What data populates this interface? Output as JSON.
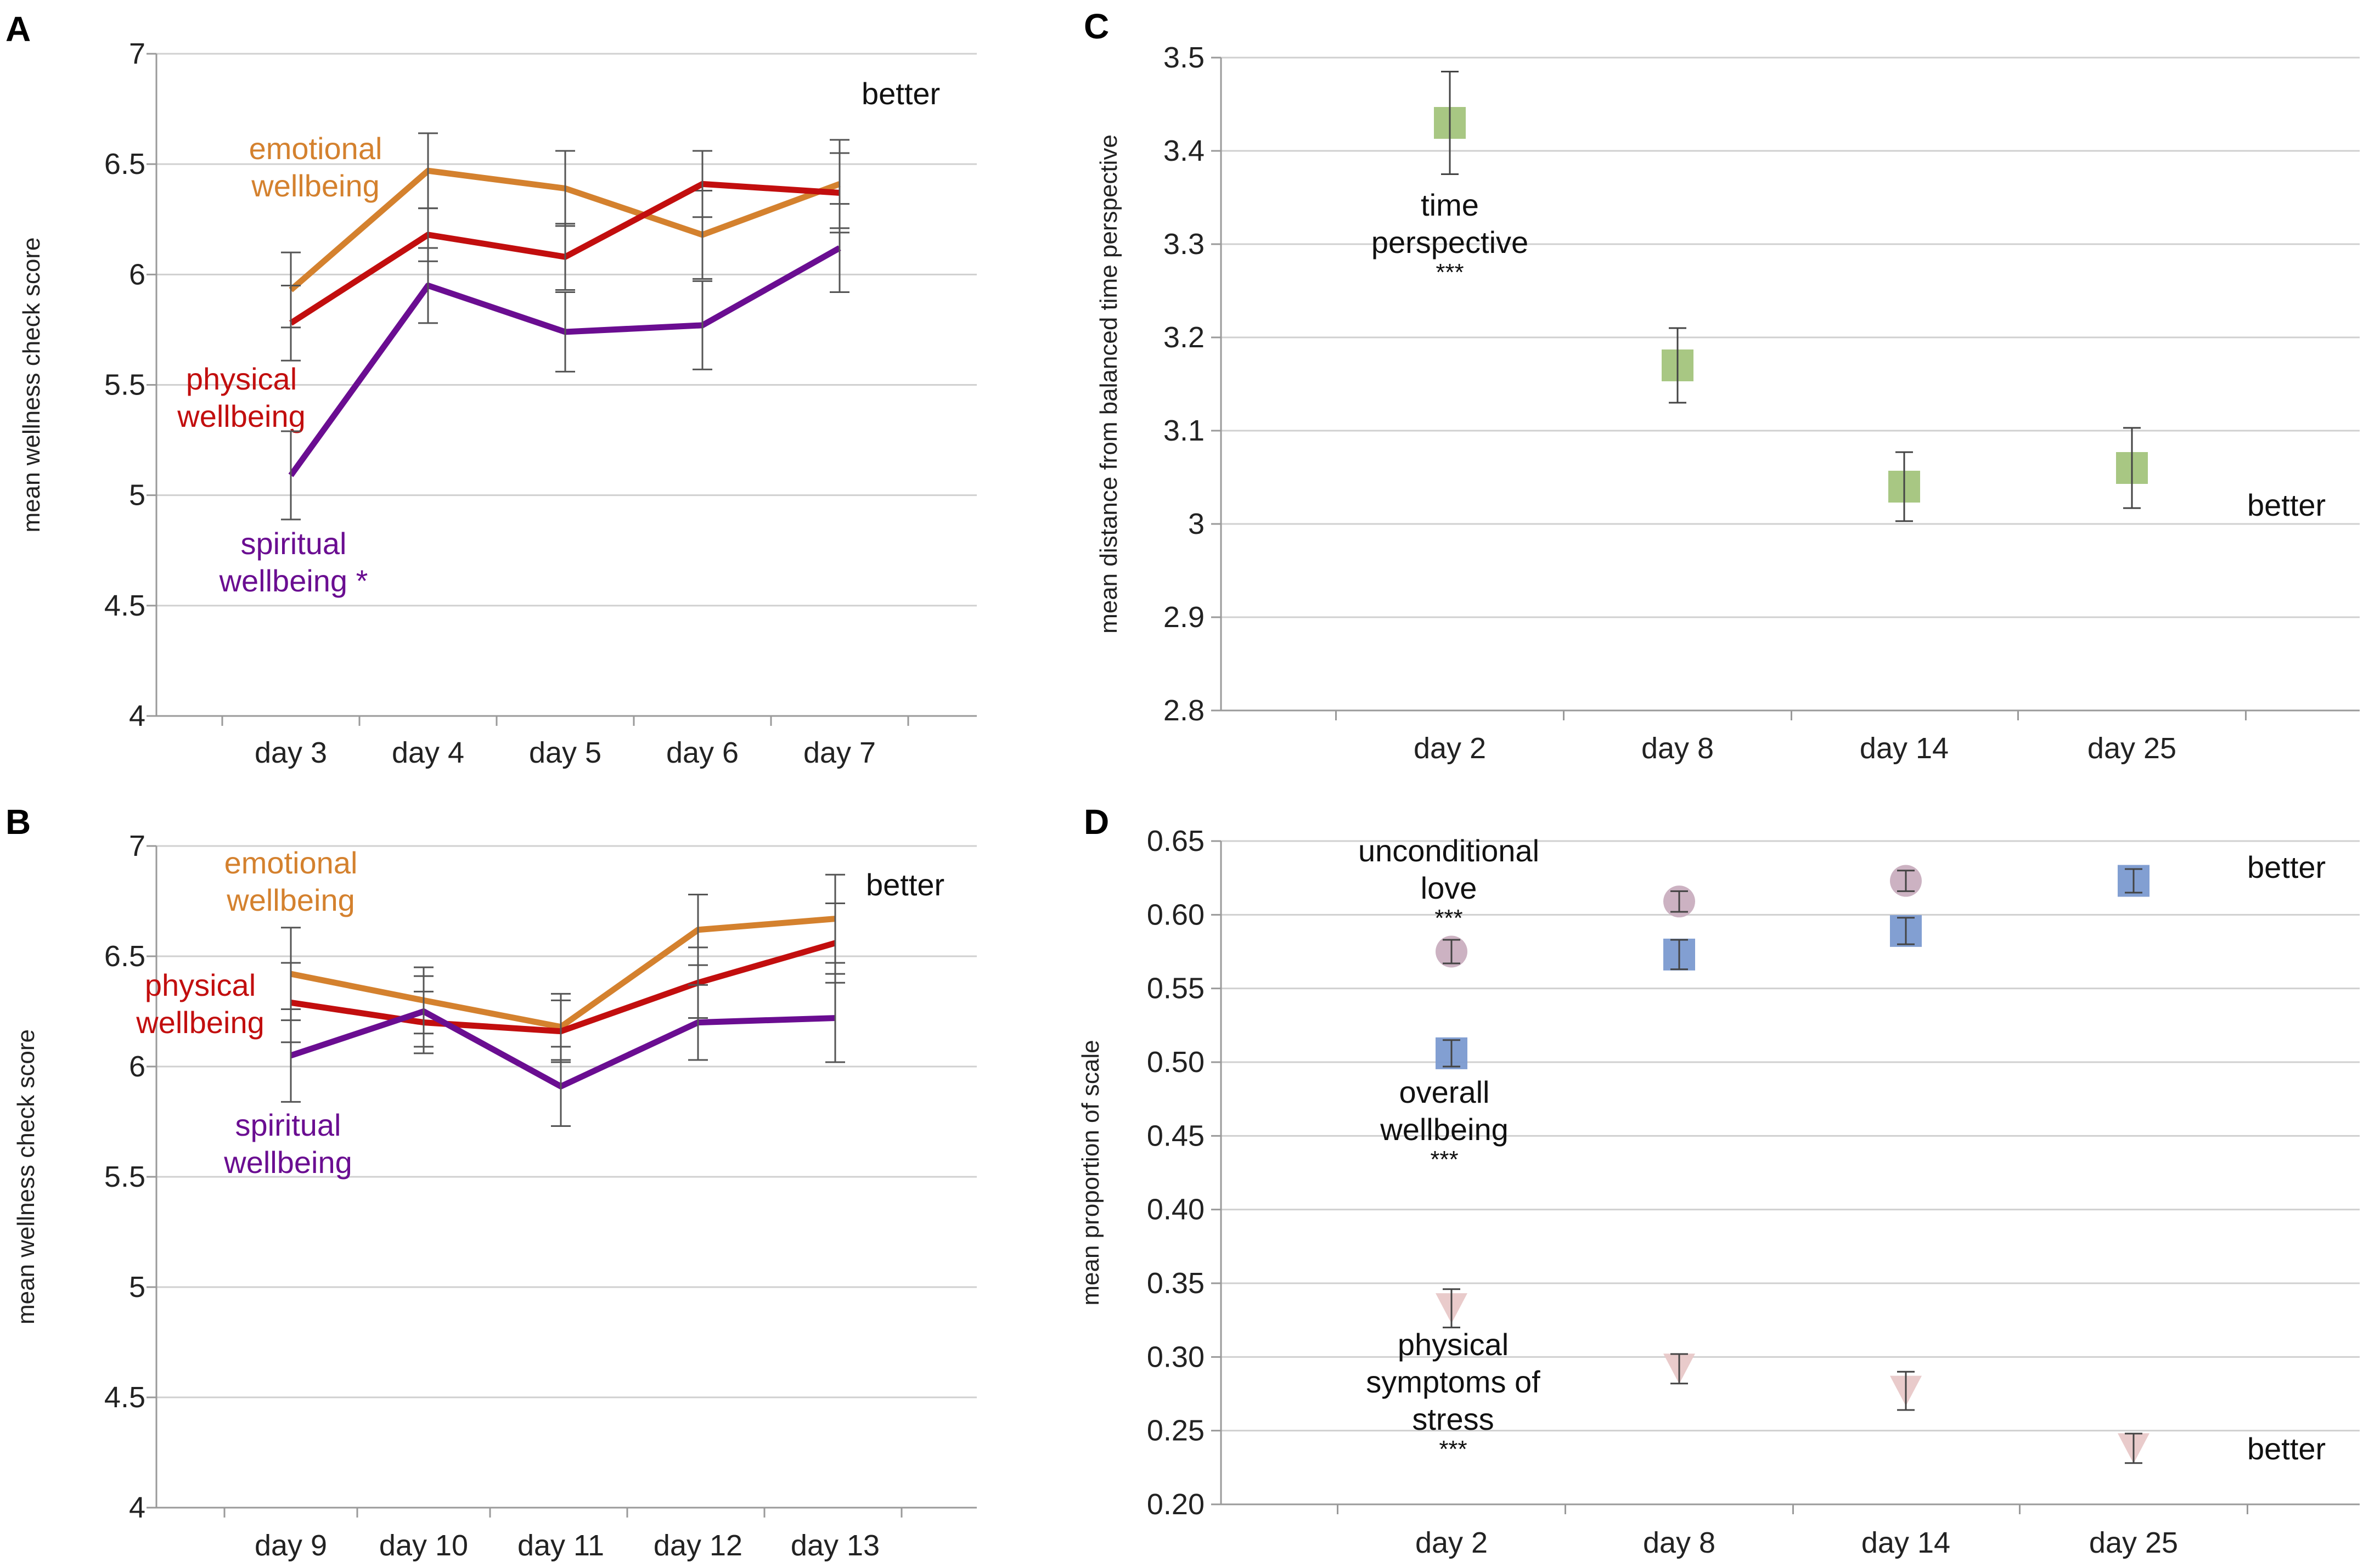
{
  "chart_data": [
    {
      "panel": "A",
      "type": "line",
      "categories": [
        "day 3",
        "day 4",
        "day 5",
        "day 6",
        "day 7"
      ],
      "ylabel": "mean wellness check score",
      "ylim": [
        4,
        7
      ],
      "yticks": [
        4,
        4.5,
        5,
        5.5,
        6,
        6.5,
        7
      ],
      "ytick_labels": [
        "4",
        "4.5",
        "5",
        "5.5",
        "6",
        "6.5",
        "7"
      ],
      "better_label": "better",
      "grid": true,
      "series": [
        {
          "name": "emotional wellbeing",
          "label_lines": [
            "emotional",
            "wellbeing"
          ],
          "color": "#d4812e",
          "values": [
            5.93,
            6.47,
            6.39,
            6.18,
            6.41
          ],
          "errors": [
            0.17,
            0.17,
            0.17,
            0.2,
            0.2
          ]
        },
        {
          "name": "physical wellbeing",
          "label_lines": [
            "physical",
            "wellbeing"
          ],
          "color": "#c20e0e",
          "values": [
            5.78,
            6.18,
            6.08,
            6.41,
            6.37
          ],
          "errors": [
            0.17,
            0.12,
            0.15,
            0.15,
            0.18
          ]
        },
        {
          "name": "spiritual wellbeing",
          "label_lines": [
            "spiritual",
            "wellbeing *"
          ],
          "color": "#6a0d91",
          "values": [
            5.09,
            5.95,
            5.74,
            5.77,
            6.12
          ],
          "errors": [
            0.2,
            0.17,
            0.18,
            0.2,
            0.2
          ]
        }
      ]
    },
    {
      "panel": "B",
      "type": "line",
      "categories": [
        "day 9",
        "day 10",
        "day 11",
        "day 12",
        "day 13"
      ],
      "ylabel": "mean wellness check score",
      "ylim": [
        4,
        7
      ],
      "yticks": [
        4,
        4.5,
        5,
        5.5,
        6,
        6.5,
        7
      ],
      "ytick_labels": [
        "4",
        "4.5",
        "5",
        "5.5",
        "6",
        "6.5",
        "7"
      ],
      "better_label": "better",
      "grid": true,
      "series": [
        {
          "name": "emotional wellbeing",
          "label_lines": [
            "emotional",
            "wellbeing"
          ],
          "color": "#d4812e",
          "values": [
            6.42,
            6.3,
            6.18,
            6.62,
            6.67
          ],
          "errors": [
            0.21,
            0.15,
            0.15,
            0.16,
            0.2
          ]
        },
        {
          "name": "physical wellbeing",
          "label_lines": [
            "physical",
            "wellbeing"
          ],
          "color": "#c20e0e",
          "values": [
            6.29,
            6.2,
            6.16,
            6.38,
            6.56
          ],
          "errors": [
            0.18,
            0.14,
            0.14,
            0.16,
            0.18
          ]
        },
        {
          "name": "spiritual wellbeing",
          "label_lines": [
            "spiritual",
            "wellbeing"
          ],
          "color": "#6a0d91",
          "values": [
            6.05,
            6.25,
            5.91,
            6.2,
            6.22
          ],
          "errors": [
            0.21,
            0.16,
            0.18,
            0.17,
            0.2
          ]
        }
      ]
    },
    {
      "panel": "C",
      "type": "scatter",
      "categories": [
        "day 2",
        "day 8",
        "day 14",
        "day 25"
      ],
      "ylabel": "mean distance from balanced time perspective",
      "ylim": [
        2.8,
        3.5
      ],
      "yticks": [
        2.8,
        2.9,
        3,
        3.1,
        3.2,
        3.3,
        3.4,
        3.5
      ],
      "ytick_labels": [
        "2.8",
        "2.9",
        "3",
        "3.1",
        "3.2",
        "3.3",
        "3.4",
        "3.5"
      ],
      "better_label": "better",
      "grid": true,
      "series": [
        {
          "name": "time perspective",
          "label_lines": [
            "time",
            "perspective",
            "***"
          ],
          "color": "#a3c47c",
          "marker": "square",
          "values": [
            3.43,
            3.17,
            3.04,
            3.06
          ],
          "errors": [
            0.055,
            0.04,
            0.037,
            0.043
          ]
        }
      ]
    },
    {
      "panel": "D",
      "type": "scatter",
      "categories": [
        "day 2",
        "day 8",
        "day 14",
        "day 25"
      ],
      "ylabel": "mean proportion of scale",
      "ylim": [
        0.2,
        0.65
      ],
      "yticks": [
        0.2,
        0.25,
        0.3,
        0.35,
        0.4,
        0.45,
        0.5,
        0.55,
        0.6,
        0.65
      ],
      "ytick_labels": [
        "0.20",
        "0.25",
        "0.30",
        "0.35",
        "0.40",
        "0.45",
        "0.50",
        "0.55",
        "0.60",
        "0.65"
      ],
      "better_labels": [
        "better",
        "better"
      ],
      "grid": true,
      "series": [
        {
          "name": "unconditional love",
          "label_lines": [
            "unconditional",
            "love",
            "***"
          ],
          "color": "#c9aebf",
          "marker": "circle",
          "values": [
            0.575,
            0.609,
            0.623,
            null
          ],
          "errors": [
            0.008,
            0.007,
            0.007,
            null
          ]
        },
        {
          "name": "overall wellbeing",
          "label_lines": [
            "overall",
            "wellbeing",
            "***"
          ],
          "color": "#7b9ad0",
          "marker": "square",
          "values": [
            0.506,
            0.573,
            0.589,
            0.623
          ],
          "errors": [
            0.009,
            0.01,
            0.009,
            0.008
          ]
        },
        {
          "name": "physical symptoms of stress",
          "label_lines": [
            "physical",
            "symptoms of",
            "stress",
            "***"
          ],
          "color": "#e8c8c8",
          "marker": "triangle-down",
          "values": [
            0.333,
            0.292,
            0.277,
            0.238
          ],
          "errors": [
            0.013,
            0.01,
            0.013,
            0.01
          ]
        }
      ]
    }
  ]
}
